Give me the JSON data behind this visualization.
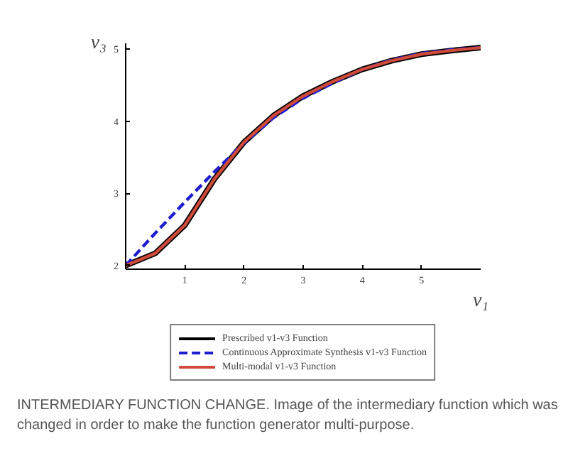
{
  "chart_data": {
    "type": "line",
    "xlabel": "v₁",
    "ylabel": "v₃",
    "x": [
      0,
      0.5,
      1,
      1.5,
      2,
      2.5,
      3,
      3.5,
      4,
      4.5,
      5,
      5.5,
      6
    ],
    "series": [
      {
        "name": "Prescribed v1-v3 Function",
        "color": "#000000",
        "line_style": "solid",
        "values": [
          2.0,
          2.17,
          2.56,
          3.2,
          3.71,
          4.08,
          4.35,
          4.55,
          4.72,
          4.84,
          4.93,
          4.98,
          5.02
        ]
      },
      {
        "name": "Continuous Approximate Synthesis v1-v3 Function",
        "color": "#1f1fd0",
        "line_style": "dashed",
        "values": [
          2.0,
          2.45,
          2.88,
          3.3,
          3.7,
          4.05,
          4.32,
          4.53,
          4.72,
          4.85,
          4.94,
          4.99,
          5.02
        ]
      },
      {
        "name": "Multi-modal v1-v3 Function",
        "color": "#d04a3a",
        "line_style": "solid",
        "values": [
          2.0,
          2.17,
          2.56,
          3.2,
          3.71,
          4.08,
          4.35,
          4.55,
          4.72,
          4.84,
          4.93,
          4.98,
          5.02
        ]
      }
    ],
    "xlim": [
      0,
      6
    ],
    "ylim": [
      1.95,
      5.08
    ],
    "xticks": [
      1,
      2,
      3,
      4,
      5
    ],
    "yticks": [
      2,
      3,
      4,
      5
    ],
    "grid": false,
    "legend": "bottom",
    "annotations": [
      "INTERMEDIARY FUNCTION CHANGE.  Image of the intermediary function which was changed in order to make the function generator multi-purpose."
    ]
  }
}
